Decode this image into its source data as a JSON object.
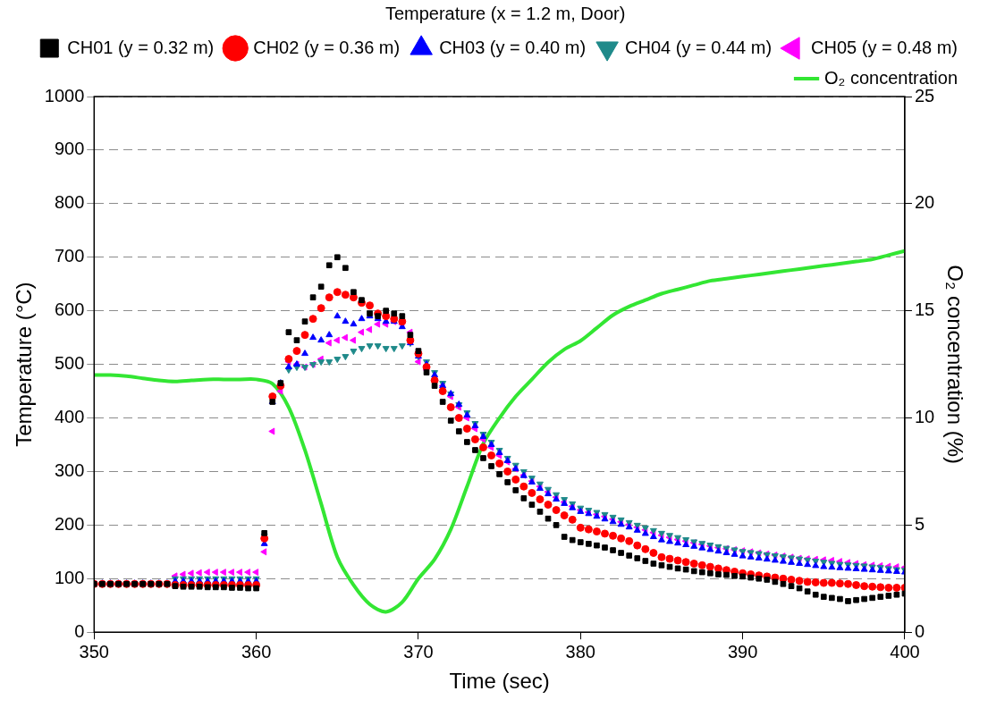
{
  "chart_data": {
    "type": "scatter",
    "x_label": "Time (sec)",
    "y_label": "Temperature (°C)",
    "y2_label": "O₂ concentration (%)",
    "legend_title": "Temperature (x = 1.2 m, Door)",
    "legend": "top-right",
    "grid": true,
    "xlim": [
      350,
      400
    ],
    "xticks": [
      350,
      360,
      370,
      380,
      390,
      400
    ],
    "ylim": [
      0,
      1000
    ],
    "yticks": [
      0,
      100,
      200,
      300,
      400,
      500,
      600,
      700,
      800,
      900,
      1000
    ],
    "y2lim": [
      0,
      25
    ],
    "y2ticks": [
      0,
      5,
      10,
      15,
      20,
      25
    ],
    "x": [
      350,
      350.5,
      351,
      351.5,
      352,
      352.5,
      353,
      353.5,
      354,
      354.5,
      355,
      355.5,
      356,
      356.5,
      357,
      357.5,
      358,
      358.5,
      359,
      359.5,
      360,
      360.5,
      361,
      361.5,
      362,
      362.5,
      363,
      363.5,
      364,
      364.5,
      365,
      365.5,
      366,
      366.5,
      367,
      367.5,
      368,
      368.5,
      369,
      369.5,
      370,
      370.5,
      371,
      371.5,
      372,
      372.5,
      373,
      373.5,
      374,
      374.5,
      375,
      375.5,
      376,
      376.5,
      377,
      377.5,
      378,
      378.5,
      379,
      379.5,
      380,
      380.5,
      381,
      381.5,
      382,
      382.5,
      383,
      383.5,
      384,
      384.5,
      385,
      385.5,
      386,
      386.5,
      387,
      387.5,
      388,
      388.5,
      389,
      389.5,
      390,
      390.5,
      391,
      391.5,
      392,
      392.5,
      393,
      393.5,
      394,
      394.5,
      395,
      395.5,
      396,
      396.5,
      397,
      397.5,
      398,
      398.5,
      399,
      399.5,
      400
    ],
    "series": [
      {
        "name": "CH01 (y = 0.32 m)",
        "color": "#000000",
        "marker": "square",
        "values": [
          90,
          90,
          90,
          90,
          90,
          90,
          90,
          90,
          90,
          90,
          86,
          85,
          85,
          85,
          84,
          84,
          84,
          83,
          83,
          82,
          82,
          185,
          430,
          465,
          560,
          545,
          580,
          625,
          645,
          685,
          700,
          680,
          635,
          620,
          595,
          590,
          600,
          595,
          590,
          555,
          525,
          485,
          460,
          430,
          395,
          375,
          355,
          340,
          325,
          310,
          295,
          280,
          265,
          250,
          238,
          225,
          212,
          200,
          178,
          172,
          168,
          165,
          162,
          158,
          153,
          148,
          143,
          138,
          133,
          128,
          125,
          122,
          119,
          117,
          114,
          112,
          110,
          108,
          107,
          105,
          104,
          102,
          100,
          98,
          94,
          90,
          86,
          82,
          76,
          70,
          66,
          64,
          62,
          58,
          60,
          62,
          64,
          66,
          68,
          70,
          72
        ]
      },
      {
        "name": "CH02 (y = 0.36 m)",
        "color": "#ff0000",
        "marker": "circle",
        "values": [
          90,
          90,
          90,
          90,
          90,
          90,
          90,
          90,
          90,
          90,
          88,
          88,
          88,
          88,
          88,
          88,
          88,
          88,
          88,
          88,
          88,
          175,
          440,
          460,
          510,
          525,
          555,
          585,
          605,
          625,
          635,
          630,
          625,
          615,
          610,
          595,
          590,
          585,
          580,
          545,
          520,
          495,
          470,
          450,
          420,
          400,
          380,
          360,
          345,
          330,
          315,
          300,
          285,
          272,
          260,
          248,
          238,
          228,
          218,
          210,
          195,
          192,
          188,
          184,
          180,
          175,
          170,
          162,
          155,
          148,
          140,
          137,
          134,
          131,
          128,
          125,
          122,
          119,
          116,
          113,
          110,
          108,
          106,
          104,
          102,
          100,
          98,
          96,
          94,
          93,
          92,
          92,
          91,
          90,
          88,
          86,
          85,
          84,
          83,
          83,
          83
        ]
      },
      {
        "name": "CH03 (y = 0.40 m)",
        "color": "#0000ff",
        "marker": "triangle-up",
        "values": [
          91,
          91,
          91,
          91,
          91,
          91,
          91,
          91,
          91,
          91,
          95,
          95,
          95,
          95,
          95,
          95,
          95,
          95,
          95,
          95,
          95,
          165,
          430,
          465,
          495,
          500,
          520,
          550,
          545,
          555,
          590,
          580,
          575,
          585,
          590,
          585,
          580,
          580,
          570,
          540,
          515,
          500,
          480,
          460,
          445,
          425,
          405,
          385,
          365,
          350,
          335,
          320,
          305,
          292,
          280,
          268,
          258,
          248,
          240,
          232,
          225,
          221,
          216,
          211,
          206,
          201,
          196,
          190,
          184,
          178,
          172,
          169,
          166,
          163,
          160,
          157,
          154,
          151,
          148,
          145,
          142,
          140,
          138,
          136,
          134,
          132,
          130,
          128,
          126,
          124,
          122,
          121,
          120,
          119,
          118,
          117,
          116,
          115,
          114,
          113,
          112
        ]
      },
      {
        "name": "CH04 (y = 0.44 m)",
        "color": "#1f8a8a",
        "marker": "triangle-down",
        "values": [
          90,
          90,
          90,
          90,
          90,
          90,
          90,
          90,
          90,
          90,
          100,
          100,
          100,
          100,
          100,
          100,
          100,
          100,
          100,
          100,
          100,
          180,
          440,
          460,
          490,
          495,
          495,
          500,
          505,
          505,
          510,
          515,
          525,
          530,
          535,
          535,
          530,
          530,
          535,
          540,
          515,
          505,
          485,
          465,
          445,
          425,
          410,
          390,
          370,
          355,
          340,
          325,
          312,
          300,
          288,
          277,
          267,
          257,
          248,
          240,
          232,
          228,
          224,
          220,
          215,
          210,
          205,
          200,
          195,
          190,
          185,
          181,
          177,
          173,
          169,
          166,
          163,
          160,
          157,
          154,
          151,
          149,
          147,
          145,
          143,
          141,
          139,
          137,
          135,
          133,
          131,
          129,
          127,
          126,
          125,
          124,
          122,
          121,
          119,
          117,
          116
        ]
      },
      {
        "name": "CH05 (y = 0.48 m)",
        "color": "#ff00ff",
        "marker": "triangle-left",
        "values": [
          90,
          90,
          90,
          90,
          90,
          90,
          90,
          90,
          90,
          90,
          105,
          108,
          110,
          111,
          112,
          112,
          112,
          112,
          112,
          112,
          112,
          150,
          375,
          450,
          505,
          500,
          495,
          500,
          510,
          540,
          545,
          550,
          545,
          560,
          565,
          575,
          575,
          580,
          575,
          560,
          505,
          490,
          470,
          460,
          440,
          420,
          400,
          380,
          360,
          345,
          330,
          318,
          305,
          293,
          282,
          272,
          262,
          252,
          243,
          235,
          228,
          224,
          220,
          216,
          211,
          206,
          201,
          196,
          191,
          186,
          181,
          177,
          173,
          170,
          167,
          164,
          161,
          158,
          156,
          154,
          152,
          150,
          148,
          146,
          144,
          142,
          140,
          138,
          137,
          136,
          135,
          134,
          132,
          130,
          128,
          126,
          125,
          124,
          123,
          122,
          121
        ]
      },
      {
        "name": "O₂ concentration",
        "color": "#33e633",
        "type": "line",
        "marker": "none",
        "line_style": "solid",
        "axis": "y2",
        "x": [
          350,
          351,
          352,
          353,
          354,
          355,
          356,
          357,
          358,
          359,
          360,
          361,
          362,
          363,
          364,
          365,
          366,
          367,
          368,
          369,
          370,
          371,
          372,
          373,
          374,
          375,
          376,
          377,
          378,
          379,
          380,
          381,
          382,
          383,
          384,
          385,
          386,
          387,
          388,
          389,
          390,
          391,
          392,
          393,
          394,
          395,
          396,
          397,
          398,
          399,
          400
        ],
        "values": [
          12.0,
          12.0,
          11.95,
          11.85,
          11.75,
          11.7,
          11.75,
          11.8,
          11.8,
          11.8,
          11.8,
          11.6,
          10.5,
          8.5,
          6.0,
          3.5,
          2.2,
          1.3,
          0.95,
          1.4,
          2.5,
          3.4,
          4.8,
          6.8,
          8.8,
          10.0,
          11.0,
          11.8,
          12.6,
          13.2,
          13.6,
          14.2,
          14.8,
          15.2,
          15.5,
          15.8,
          16.0,
          16.2,
          16.4,
          16.5,
          16.6,
          16.7,
          16.8,
          16.9,
          17.0,
          17.1,
          17.2,
          17.3,
          17.4,
          17.6,
          17.8
        ]
      }
    ]
  }
}
